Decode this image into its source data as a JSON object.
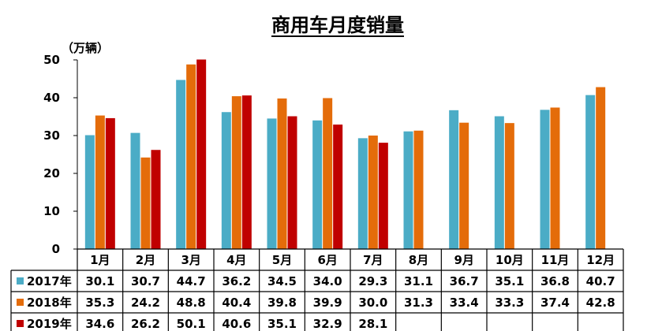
{
  "chart_data": {
    "type": "bar",
    "title": "商用车月度销量",
    "unit_label": "（万辆）",
    "categories": [
      "1月",
      "2月",
      "3月",
      "4月",
      "5月",
      "6月",
      "7月",
      "8月",
      "9月",
      "10月",
      "11月",
      "12月"
    ],
    "ylim": [
      0,
      50
    ],
    "yticks": [
      "0",
      "10",
      "20",
      "30",
      "40",
      "50"
    ],
    "grid": false,
    "legend_placement": "data-table-rows",
    "series": [
      {
        "name": "2017年",
        "color": "#4bacc6",
        "values": [
          30.1,
          30.7,
          44.7,
          36.2,
          34.5,
          34.0,
          29.3,
          31.1,
          36.7,
          35.1,
          36.8,
          40.7
        ],
        "labels": [
          "30.1",
          "30.7",
          "44.7",
          "36.2",
          "34.5",
          "34.0",
          "29.3",
          "31.1",
          "36.7",
          "35.1",
          "36.8",
          "40.7"
        ]
      },
      {
        "name": "2018年",
        "color": "#e46c0a",
        "values": [
          35.3,
          24.2,
          48.8,
          40.4,
          39.8,
          39.9,
          30.0,
          31.3,
          33.4,
          33.3,
          37.4,
          42.8
        ],
        "labels": [
          "35.3",
          "24.2",
          "48.8",
          "40.4",
          "39.8",
          "39.9",
          "30.0",
          "31.3",
          "33.4",
          "33.3",
          "37.4",
          "42.8"
        ]
      },
      {
        "name": "2019年",
        "color": "#c00000",
        "values": [
          34.6,
          26.2,
          50.1,
          40.6,
          35.1,
          32.9,
          28.1,
          null,
          null,
          null,
          null,
          null
        ],
        "labels": [
          "34.6",
          "26.2",
          "50.1",
          "40.6",
          "35.1",
          "32.9",
          "28.1",
          "",
          "",
          "",
          "",
          ""
        ]
      }
    ]
  }
}
